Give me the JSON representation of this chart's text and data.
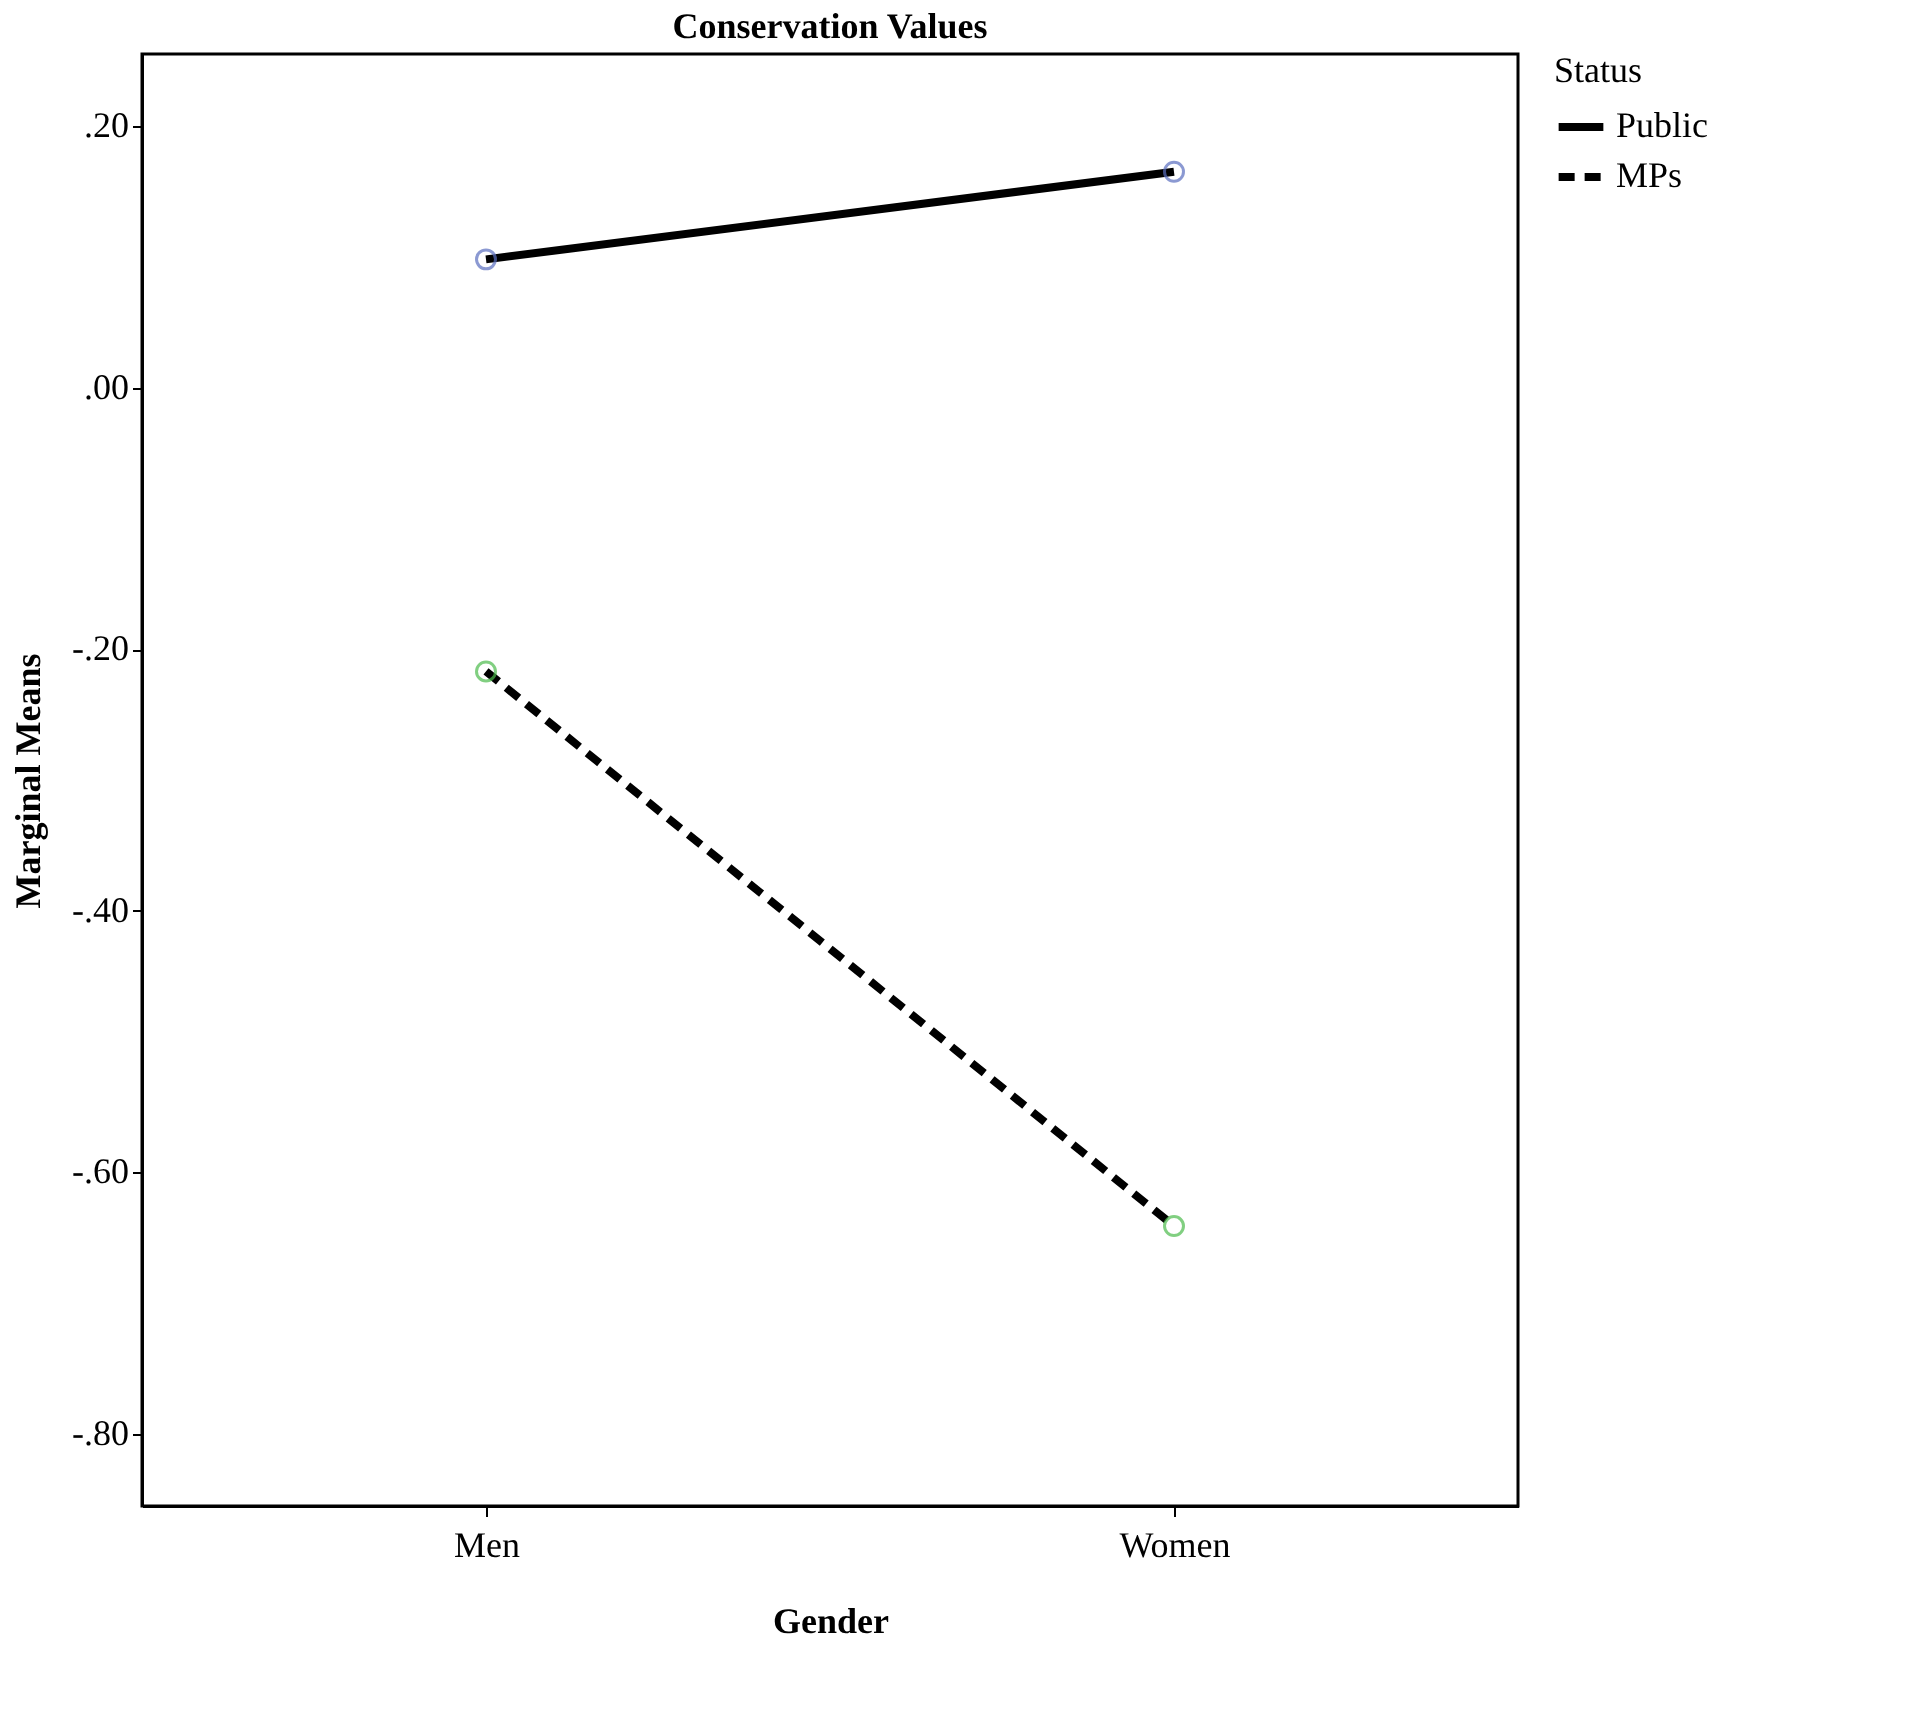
{
  "chart_data": {
    "type": "line",
    "title": "Conservation Values",
    "xlabel": "Gender",
    "ylabel": "Marginal Means",
    "legend_title": "Status",
    "categories": [
      "Men",
      "Women"
    ],
    "series": [
      {
        "name": "Public",
        "color": "#000000",
        "colors": [
          "#5b6fbf",
          "#5b6fbf"
        ],
        "line_style": "solid",
        "values": [
          0.098,
          0.165
        ]
      },
      {
        "name": "MPs",
        "color": "#000000",
        "colors": [
          "#4cbb4c",
          "#4cbb4c"
        ],
        "line_style": "dashed",
        "values": [
          -0.217,
          -0.641
        ]
      }
    ],
    "ylim": [
      -0.855,
      0.255
    ],
    "yticks": [
      {
        "value": 0.2,
        "label": ".20"
      },
      {
        "value": 0,
        "label": ".00"
      },
      {
        "value": -0.2,
        "label": "-.20"
      },
      {
        "value": -0.4,
        "label": "-.40"
      },
      {
        "value": -0.6,
        "label": "-.60"
      },
      {
        "value": -0.8,
        "label": "-.80"
      }
    ],
    "grid": false,
    "legend": "top right",
    "marker": "circle"
  }
}
